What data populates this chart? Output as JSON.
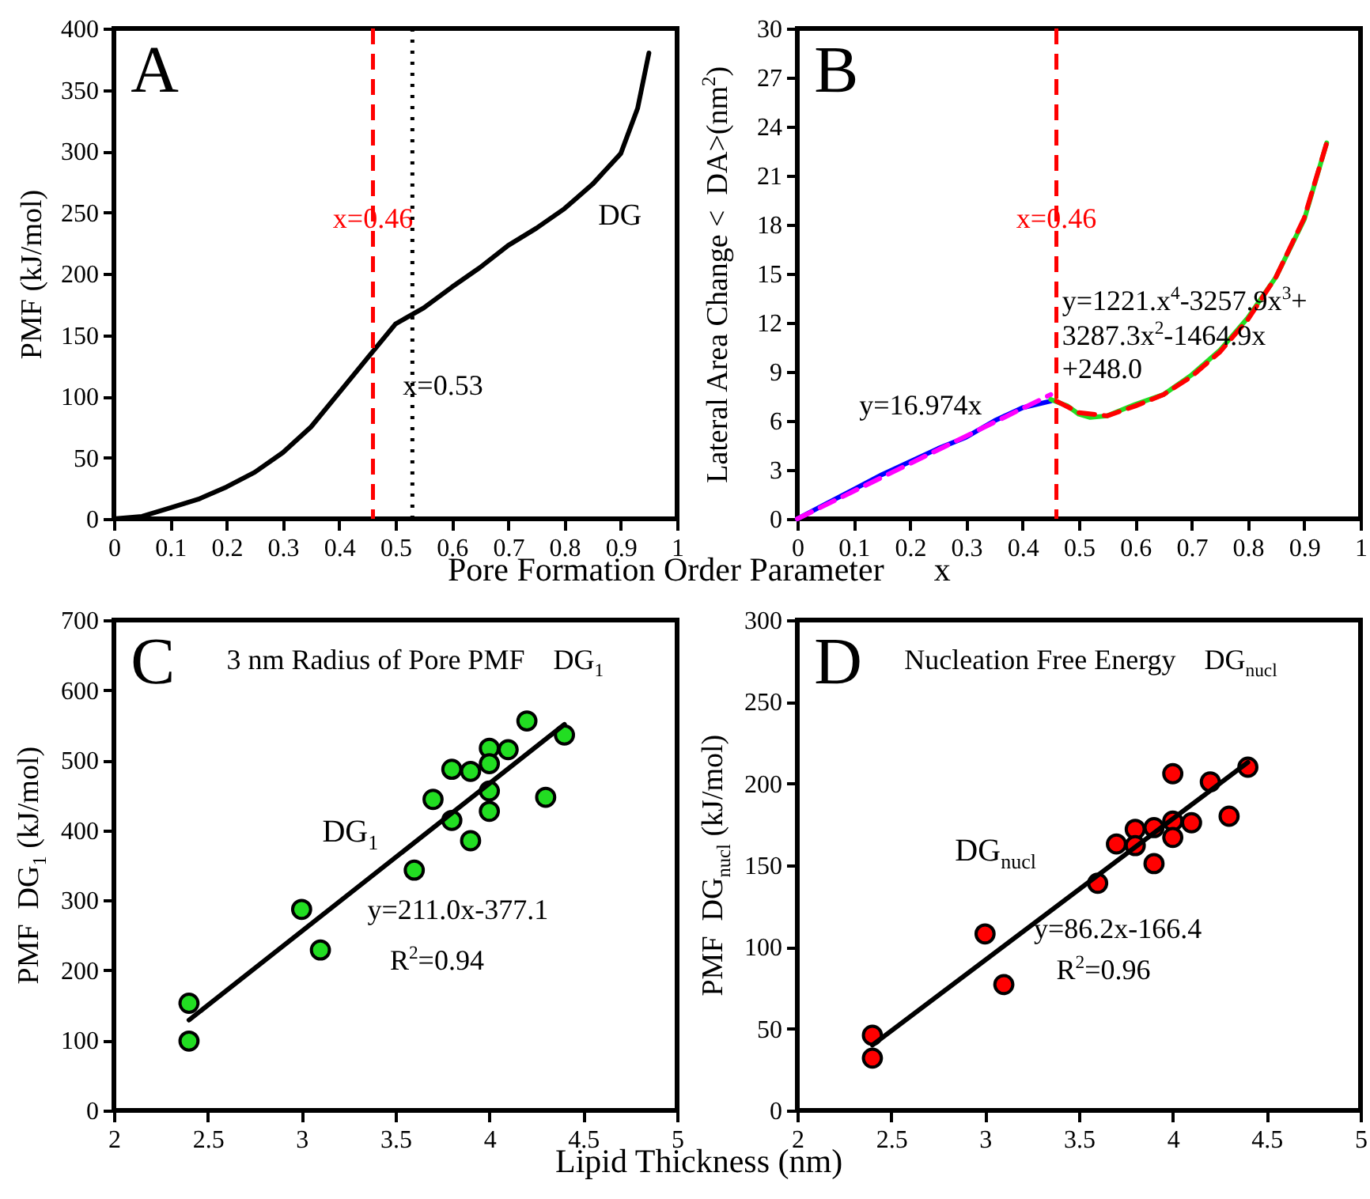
{
  "chart_data": [
    {
      "type": "line",
      "xlabel": "Pore Formation Order Parameter      x",
      "ylabel": "PMF (kJ/mol)",
      "annotations": [
        "A"
      ],
      "x": [
        0,
        0.05,
        0.1,
        0.15,
        0.2,
        0.25,
        0.3,
        0.35,
        0.4,
        0.45,
        0.5,
        0.55,
        0.6,
        0.65,
        0.7,
        0.75,
        0.8,
        0.85,
        0.9,
        0.93,
        0.95
      ],
      "series": [
        {
          "name": "DG",
          "color": "#000000",
          "values": [
            0,
            2,
            9,
            16,
            26,
            38,
            54,
            75,
            103,
            131,
            159,
            172,
            189,
            205,
            223,
            237,
            253,
            273,
            298,
            335,
            380
          ]
        }
      ],
      "xlim": [
        0,
        1
      ],
      "xticks": [
        0,
        0.1,
        0.2,
        0.3,
        0.4,
        0.5,
        0.6,
        0.7,
        0.8,
        0.9,
        1
      ],
      "ylim": [
        0,
        400
      ],
      "yticks": [
        0,
        50,
        100,
        150,
        200,
        250,
        300,
        350,
        400
      ],
      "ref_lines": [
        {
          "axis": "x",
          "value": 0.46,
          "label": "x=0.46",
          "color": "#ff0000",
          "line_style": "dashed"
        },
        {
          "axis": "x",
          "value": 0.53,
          "label": "x=0.53",
          "color": "#000000",
          "line_style": "dotted"
        }
      ]
    },
    {
      "type": "line",
      "ylabel": "Lateral Area Change <  DA>(nm$^{2}$)",
      "annotations": [
        "B",
        "y=16.974x",
        "y=1221.x$^{4}$-3257.9x$^{3}$+ 3287.3x$^{2}$-1464.9x +248.0"
      ],
      "series": [
        {
          "color": "#0000ff",
          "line_style": "solid",
          "x": [
            0,
            0.05,
            0.1,
            0.15,
            0.2,
            0.25,
            0.3,
            0.35,
            0.4,
            0.45
          ],
          "values": [
            0,
            0.9,
            1.8,
            2.7,
            3.5,
            4.3,
            5.0,
            6.0,
            6.8,
            7.2
          ]
        },
        {
          "color": "#ff00ff",
          "line_style": "dashed",
          "x": [
            0,
            0.45
          ],
          "values": [
            0,
            7.6
          ]
        },
        {
          "color": "#22dd22",
          "line_style": "solid",
          "x": [
            0.45,
            0.48,
            0.5,
            0.52,
            0.55,
            0.6,
            0.65,
            0.7,
            0.75,
            0.8,
            0.85,
            0.9,
            0.94
          ],
          "values": [
            7.3,
            6.9,
            6.4,
            6.2,
            6.3,
            7.0,
            7.6,
            8.8,
            10.3,
            12.3,
            14.8,
            18.3,
            23.0
          ]
        },
        {
          "color": "#ff0000",
          "line_style": "dashed",
          "x": [
            0.46,
            0.5,
            0.55,
            0.6,
            0.65,
            0.7,
            0.75,
            0.8,
            0.85,
            0.9,
            0.94
          ],
          "values": [
            7.2,
            6.5,
            6.3,
            6.9,
            7.6,
            8.7,
            10.2,
            12.2,
            14.8,
            18.4,
            23.0
          ]
        }
      ],
      "xlim": [
        0,
        1
      ],
      "xticks": [
        0,
        0.1,
        0.2,
        0.3,
        0.4,
        0.5,
        0.6,
        0.7,
        0.8,
        0.9,
        1
      ],
      "ylim": [
        0,
        30
      ],
      "yticks": [
        0,
        3,
        6,
        9,
        12,
        15,
        18,
        21,
        24,
        27,
        30
      ],
      "ref_lines": [
        {
          "axis": "x",
          "value": 0.46,
          "label": "x=0.46",
          "color": "#ff0000",
          "line_style": "dashed"
        }
      ]
    },
    {
      "type": "scatter",
      "title": "3 nm Radius of Pore PMF    DG$_{1}$",
      "xlabel": "Lipid Thickness (nm)",
      "ylabel": "PMF  DG$_{1}$ (kJ/mol)",
      "annotations": [
        "C",
        "y=211.0x-377.1",
        "R$^{2}$=0.94"
      ],
      "marker": "circle",
      "series": [
        {
          "name": "DG$_{1}$",
          "color": "#22dd22",
          "x": [
            2.4,
            2.4,
            3.0,
            3.1,
            3.6,
            3.7,
            3.8,
            3.8,
            3.9,
            3.9,
            4.0,
            4.0,
            4.0,
            4.0,
            4.1,
            4.2,
            4.3,
            4.4
          ],
          "values": [
            153,
            99,
            287,
            229,
            343,
            444,
            487,
            414,
            484,
            385,
            517,
            495,
            456,
            427,
            515,
            556,
            447,
            536
          ]
        },
        {
          "type": "line",
          "marker": "none",
          "color": "#000000",
          "x": [
            2.4,
            4.4
          ],
          "values": [
            129,
            551
          ]
        }
      ],
      "xlim": [
        2,
        5
      ],
      "xticks": [
        2,
        2.5,
        3,
        3.5,
        4,
        4.5,
        5
      ],
      "ylim": [
        0,
        700
      ],
      "yticks": [
        0,
        100,
        200,
        300,
        400,
        500,
        600,
        700
      ]
    },
    {
      "type": "scatter",
      "title": "Nucleation Free Energy    DG$_{nucl}$",
      "ylabel": "PMF  DG$_{nucl}$ (kJ/mol)",
      "annotations": [
        "D",
        "y=86.2x-166.4",
        "R$^{2}$=0.96"
      ],
      "marker": "circle",
      "series": [
        {
          "name": "DG$_{nucl}$",
          "color": "#ff0000",
          "x": [
            2.4,
            2.4,
            3.0,
            3.1,
            3.6,
            3.7,
            3.8,
            3.8,
            3.9,
            3.9,
            4.0,
            4.0,
            4.0,
            4.1,
            4.2,
            4.3,
            4.4
          ],
          "values": [
            46,
            32,
            108,
            77,
            139,
            163,
            172,
            162,
            173,
            151,
            206,
            177,
            167,
            176,
            201,
            180,
            210
          ]
        },
        {
          "type": "line",
          "marker": "none",
          "color": "#000000",
          "x": [
            2.4,
            4.4
          ],
          "values": [
            40,
            213
          ]
        }
      ],
      "xlim": [
        2,
        5
      ],
      "xticks": [
        2,
        2.5,
        3,
        3.5,
        4,
        4.5,
        5
      ],
      "ylim": [
        0,
        300
      ],
      "yticks": [
        0,
        50,
        100,
        150,
        200,
        250,
        300
      ]
    }
  ]
}
